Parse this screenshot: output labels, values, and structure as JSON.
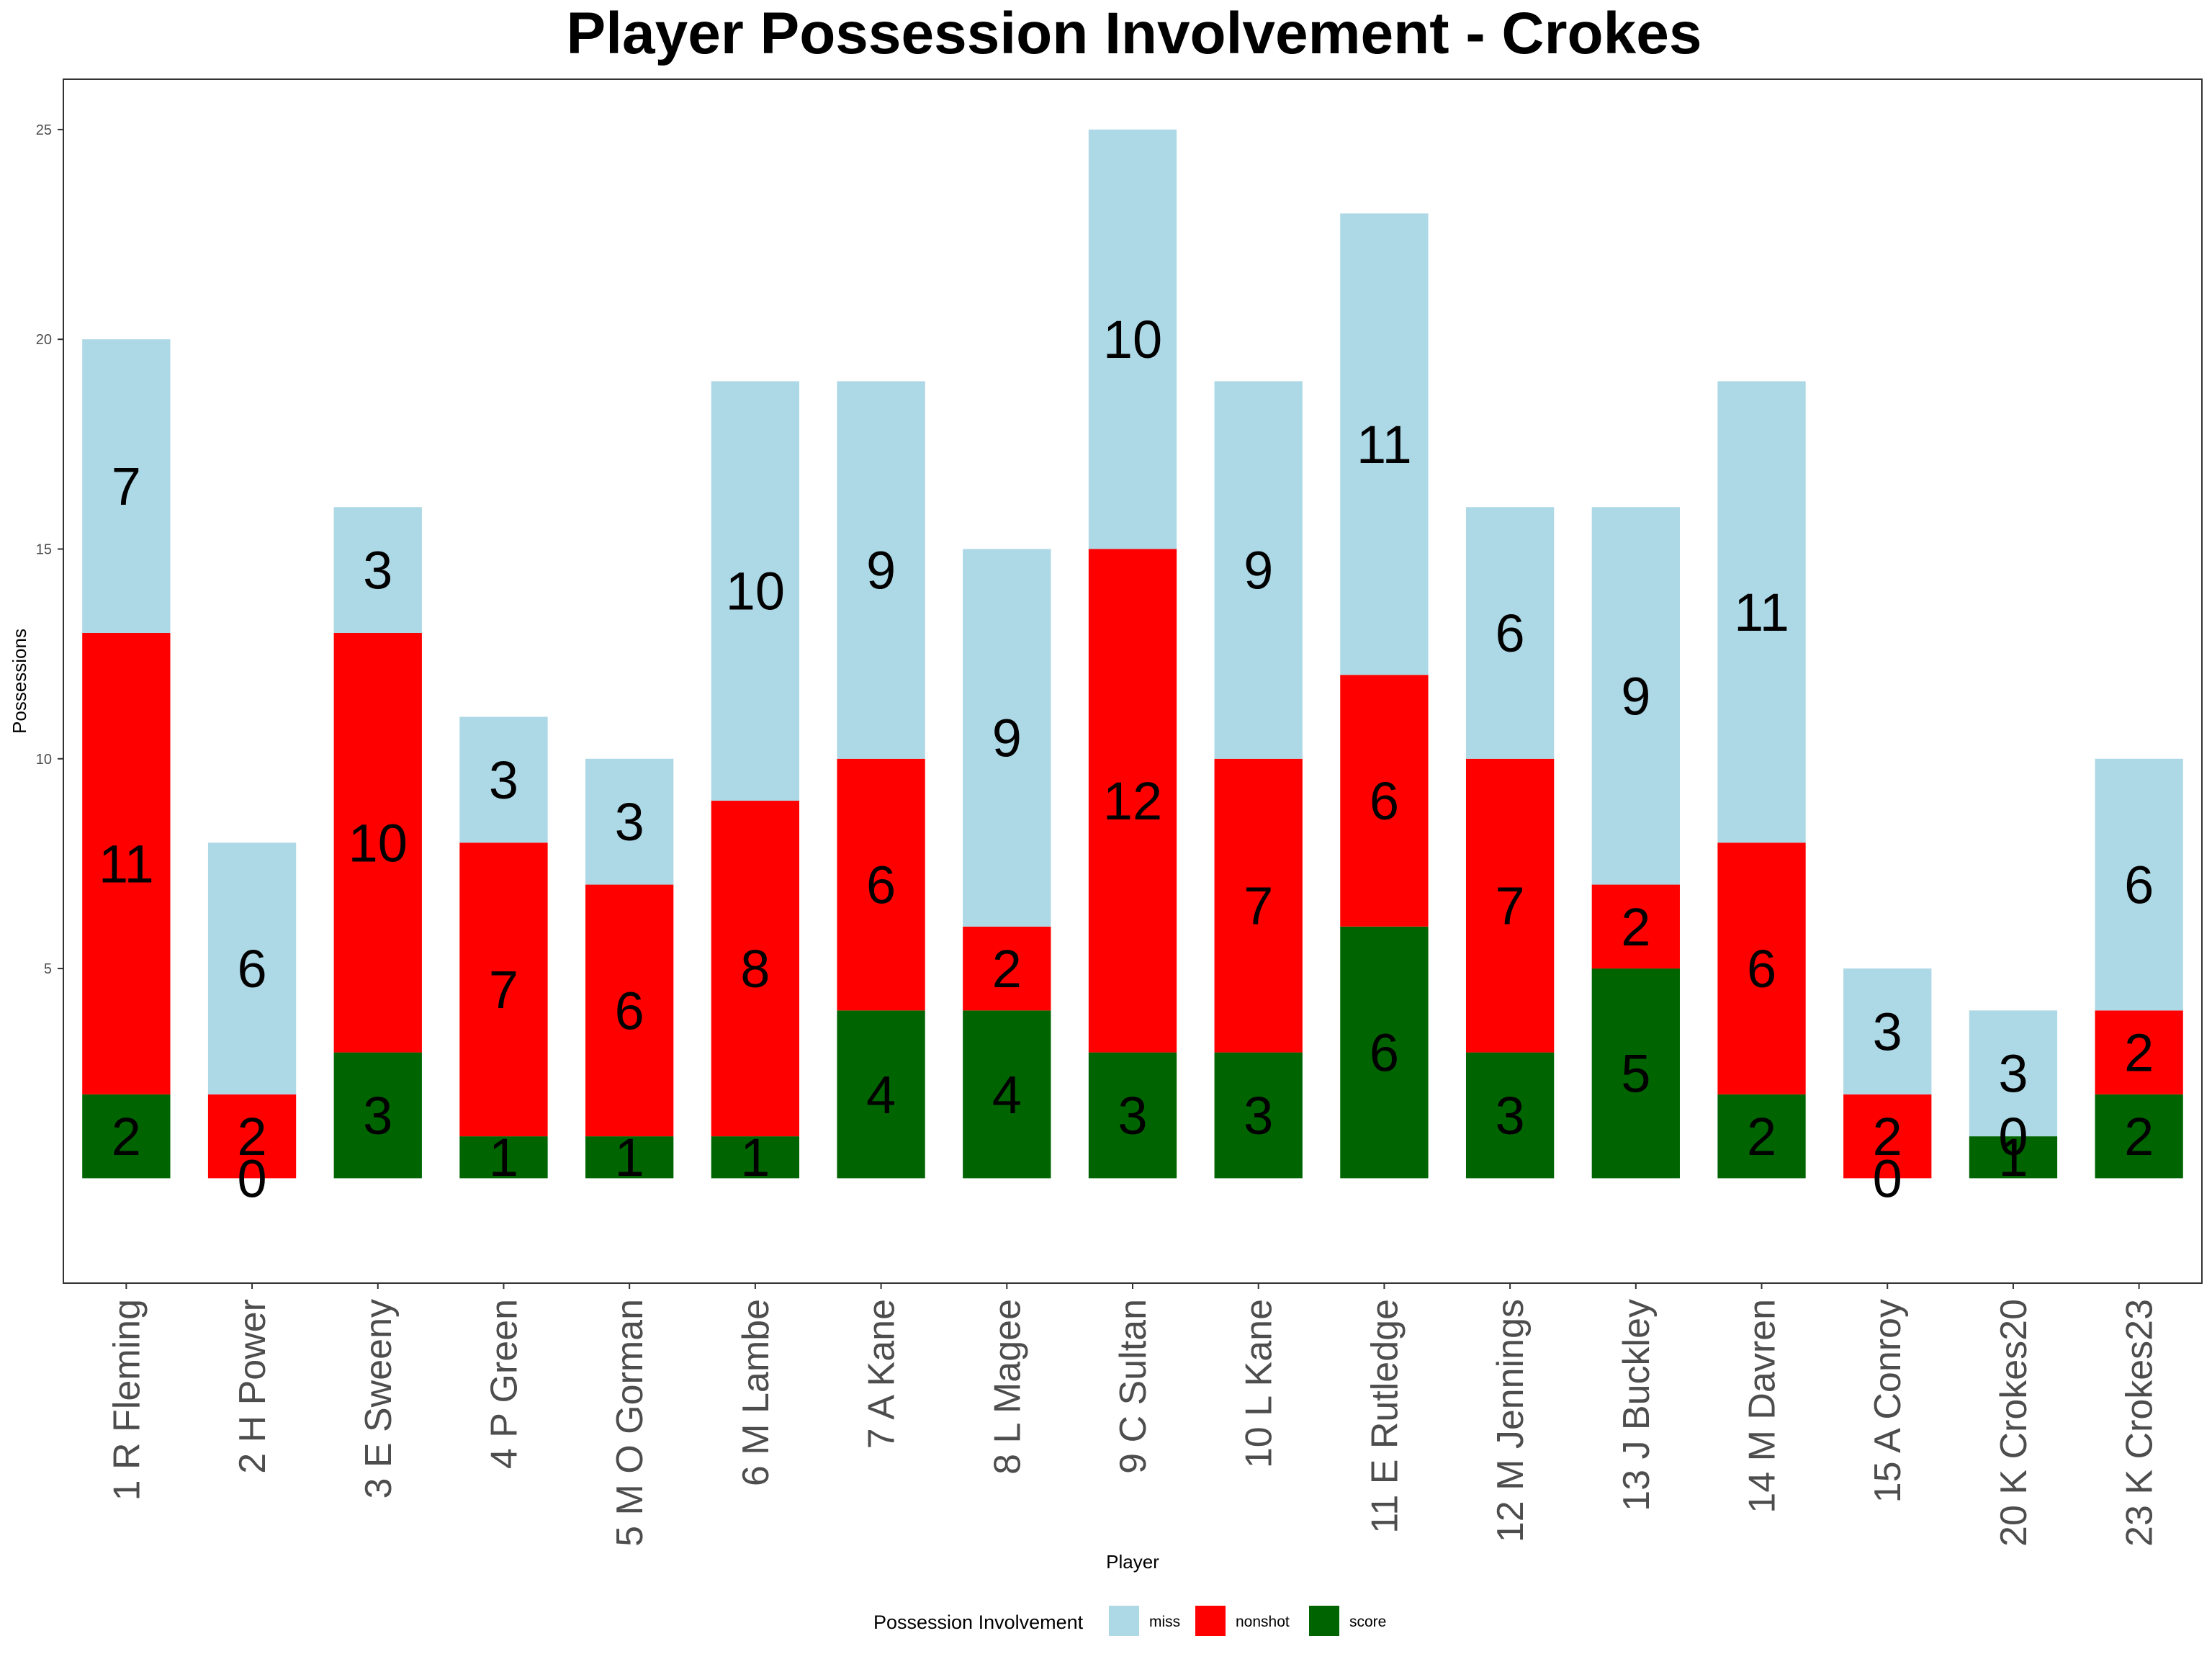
{
  "chart_data": {
    "type": "bar",
    "stacked": true,
    "title": "Player Possession Involvement - Crokes",
    "xlabel": "Player",
    "ylabel": "Possessions",
    "ylim": [
      -2.5,
      26.2
    ],
    "yticks": [
      5,
      10,
      15,
      20,
      25
    ],
    "grid": false,
    "legend_position": "bottom",
    "legend_title": "Possession Involvement",
    "categories": [
      "1 R Fleming",
      "2 H Power",
      "3 E Sweeny",
      "4 P Green",
      "5 M O Gorman",
      "6 M Lambe",
      "7 A Kane",
      "8 L Magee",
      "9 C Sultan",
      "10 L Kane",
      "11 E Rutledge",
      "12 M Jennings",
      "13 J Buckley",
      "14 M Davren",
      "15 A Conroy",
      "20 K Crokes20",
      "23 K Crokes23"
    ],
    "series": [
      {
        "name": "miss",
        "color": "#add8e6",
        "values": [
          7,
          6,
          3,
          3,
          3,
          10,
          9,
          9,
          10,
          9,
          11,
          6,
          9,
          11,
          3,
          3,
          6
        ]
      },
      {
        "name": "nonshot",
        "color": "#ff0000",
        "values": [
          11,
          2,
          10,
          7,
          6,
          8,
          6,
          2,
          12,
          7,
          6,
          7,
          2,
          6,
          2,
          0,
          2
        ]
      },
      {
        "name": "score",
        "color": "#006400",
        "values": [
          2,
          0,
          3,
          1,
          1,
          1,
          4,
          4,
          3,
          3,
          6,
          3,
          5,
          2,
          0,
          1,
          2
        ]
      }
    ]
  }
}
